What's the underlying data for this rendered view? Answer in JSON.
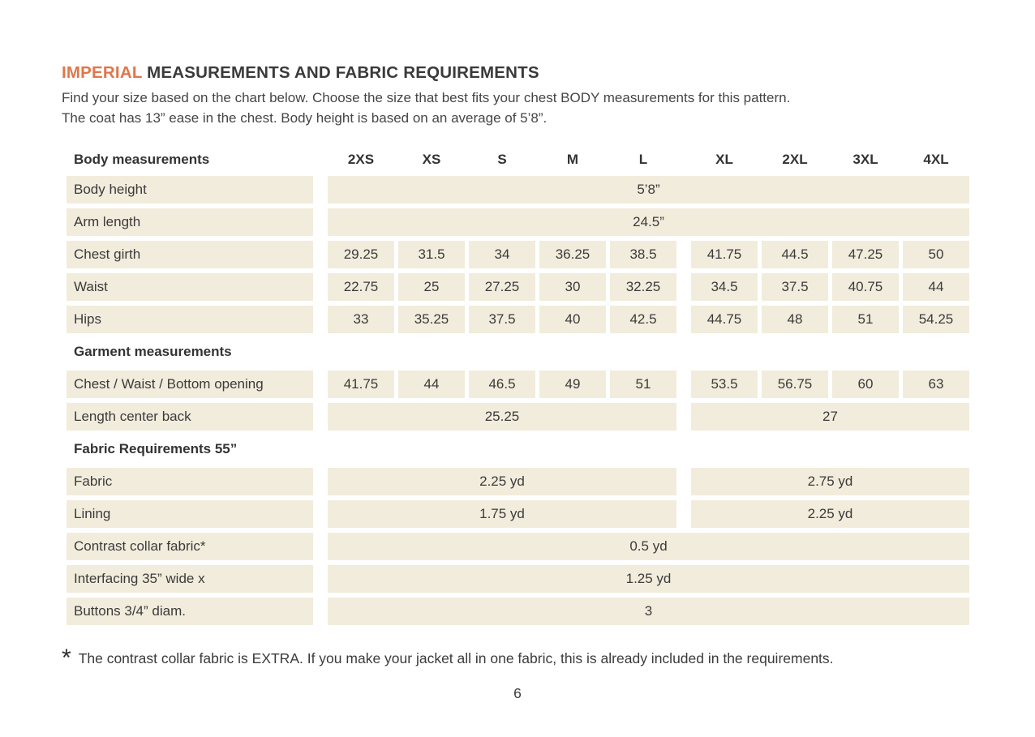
{
  "page": {
    "title": {
      "highlight": "IMPERIAL",
      "rest": "MEASUREMENTS AND FABRIC REQUIREMENTS"
    },
    "intro_line1": "Find your size based on the chart below. Choose the size that best fits your chest BODY measurements for this pattern.",
    "intro_line2": "The coat has 13” ease in the chest. Body height is based on an average of 5’8”.",
    "footnote_marker": "*",
    "footnote_text": "The contrast collar fabric is EXTRA. If you make your jacket all in one fabric, this is already included in the requirements.",
    "page_number": "6"
  },
  "colors": {
    "accent_orange": "#e0764a",
    "cell_beige": "#f2ecdc",
    "text_dark": "#3b3b3b",
    "background": "#ffffff"
  },
  "table": {
    "header": {
      "label": "Body measurements",
      "sizes": [
        "2XS",
        "XS",
        "S",
        "M",
        "L",
        "XL",
        "2XL",
        "3XL",
        "4XL"
      ]
    },
    "rows": [
      {
        "kind": "full",
        "label": "Body height",
        "value": "5’8”"
      },
      {
        "kind": "full",
        "label": "Arm length",
        "value": "24.5”"
      },
      {
        "kind": "cells",
        "label": "Chest girth",
        "values": [
          "29.25",
          "31.5",
          "34",
          "36.25",
          "38.5",
          "41.75",
          "44.5",
          "47.25",
          "50"
        ]
      },
      {
        "kind": "cells",
        "label": "Waist",
        "values": [
          "22.75",
          "25",
          "27.25",
          "30",
          "32.25",
          "34.5",
          "37.5",
          "40.75",
          "44"
        ]
      },
      {
        "kind": "cells",
        "label": "Hips",
        "values": [
          "33",
          "35.25",
          "37.5",
          "40",
          "42.5",
          "44.75",
          "48",
          "51",
          "54.25"
        ]
      },
      {
        "kind": "section",
        "label": "Garment measurements"
      },
      {
        "kind": "cells",
        "label": "Chest / Waist / Bottom opening",
        "values": [
          "41.75",
          "44",
          "46.5",
          "49",
          "51",
          "53.5",
          "56.75",
          "60",
          "63"
        ]
      },
      {
        "kind": "split",
        "label": "Length center back",
        "left": "25.25",
        "right": "27"
      },
      {
        "kind": "section",
        "label": "Fabric Requirements 55”"
      },
      {
        "kind": "split",
        "label": "Fabric",
        "left": "2.25 yd",
        "right": "2.75 yd"
      },
      {
        "kind": "split",
        "label": "Lining",
        "left": "1.75 yd",
        "right": "2.25 yd"
      },
      {
        "kind": "full",
        "label": "Contrast collar fabric*",
        "value": "0.5 yd"
      },
      {
        "kind": "full",
        "label": "Interfacing  35” wide x",
        "value": "1.25 yd"
      },
      {
        "kind": "full",
        "label": "Buttons 3/4” diam.",
        "value": "3"
      }
    ]
  }
}
